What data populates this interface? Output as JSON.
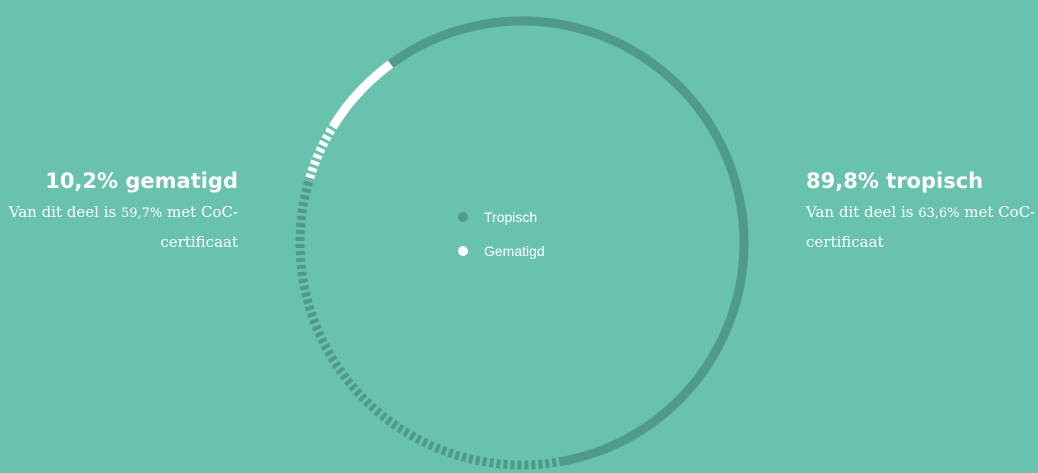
{
  "colors": {
    "background": "#69c2ae",
    "tropisch": "#4f9a89",
    "gematigd": "#ffffff"
  },
  "left": {
    "heading": "10,2% gematigd",
    "desc_before": "Van dit deel is ",
    "desc_pct": "59,7%",
    "desc_after": " met CoC-certificaat"
  },
  "right": {
    "heading": "89,8% tropisch",
    "desc_before": "Van dit deel is ",
    "desc_pct": "63,6%",
    "desc_after": " met CoC-certificaat"
  },
  "legend": [
    {
      "label": "Tropisch",
      "color": "#4f9a89"
    },
    {
      "label": "Gematigd",
      "color": "#ffffff"
    }
  ],
  "chart_data": {
    "type": "pie",
    "style": "ring",
    "series": [
      {
        "name": "Tropisch",
        "value": 89.8,
        "certified_pct": 63.6,
        "color": "#4f9a89"
      },
      {
        "name": "Gematigd",
        "value": 10.2,
        "certified_pct": 59.7,
        "color": "#ffffff"
      }
    ]
  }
}
